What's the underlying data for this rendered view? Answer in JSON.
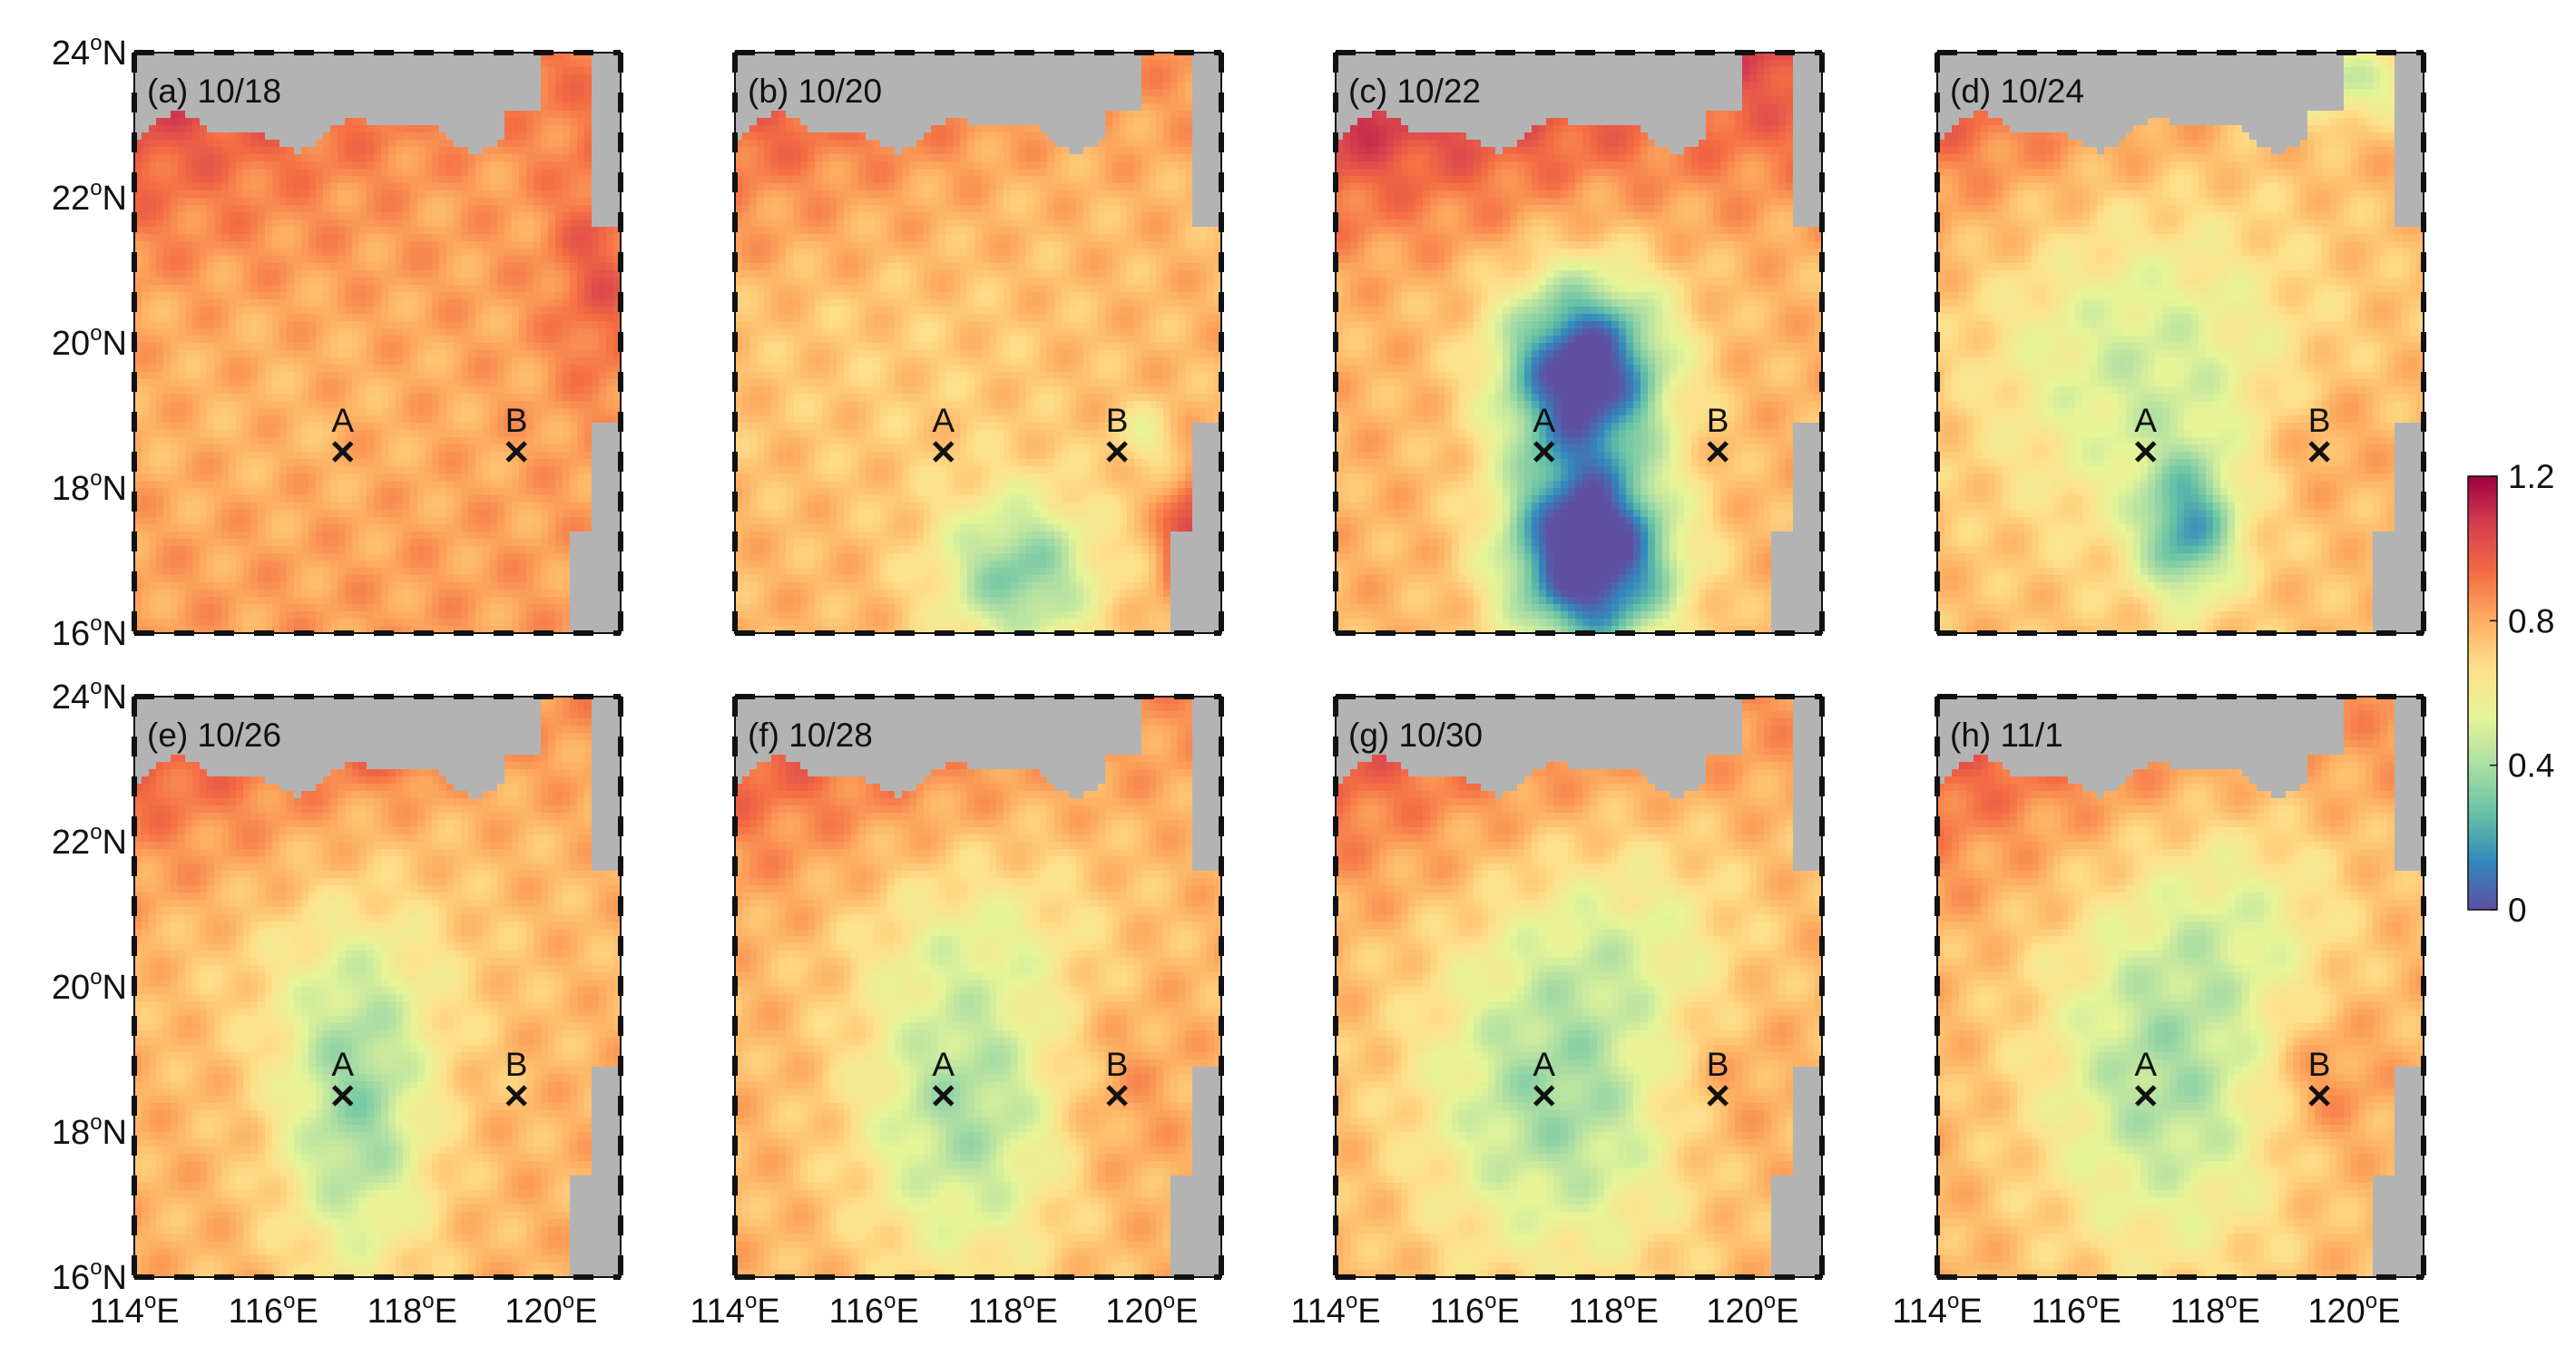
{
  "chart_data": {
    "type": "heatmap",
    "figure": "multi-panel map of a scalar field over the northern South China Sea",
    "panels": [
      {
        "label": "(a) 10/18",
        "row": 0,
        "col": 0
      },
      {
        "label": "(b) 10/20",
        "row": 0,
        "col": 1
      },
      {
        "label": "(c) 10/22",
        "row": 0,
        "col": 2
      },
      {
        "label": "(d) 10/24",
        "row": 0,
        "col": 3
      },
      {
        "label": "(e) 10/26",
        "row": 1,
        "col": 0
      },
      {
        "label": "(f) 10/28",
        "row": 1,
        "col": 1
      },
      {
        "label": "(g) 10/30",
        "row": 1,
        "col": 2
      },
      {
        "label": "(h) 11/1",
        "row": 1,
        "col": 3
      }
    ],
    "x_axis": {
      "range": [
        114,
        121
      ],
      "ticks": [
        {
          "value": 114,
          "label": "114",
          "suffix": "E"
        },
        {
          "value": 116,
          "label": "116",
          "suffix": "E"
        },
        {
          "value": 118,
          "label": "118",
          "suffix": "E"
        },
        {
          "value": 120,
          "label": "120",
          "suffix": "E"
        }
      ]
    },
    "y_axis": {
      "range": [
        16,
        24
      ],
      "ticks": [
        {
          "value": 24,
          "label": "24",
          "suffix": "N"
        },
        {
          "value": 22,
          "label": "22",
          "suffix": "N"
        },
        {
          "value": 20,
          "label": "20",
          "suffix": "N"
        },
        {
          "value": 18,
          "label": "18",
          "suffix": "N"
        },
        {
          "value": 16,
          "label": "16",
          "suffix": "N"
        }
      ]
    },
    "degree_mark": "o",
    "sites": [
      {
        "label": "A",
        "lon": 117.0,
        "lat": 18.5
      },
      {
        "label": "B",
        "lon": 119.5,
        "lat": 18.5
      }
    ],
    "colorbar": {
      "min": 0,
      "max": 1.2,
      "ticks": [
        {
          "value": 1.2,
          "label": "1.2"
        },
        {
          "value": 0.8,
          "label": "0.8"
        },
        {
          "value": 0.4,
          "label": "0.4"
        },
        {
          "value": 0,
          "label": "0"
        }
      ],
      "colormap": "spectral-reversed",
      "stops": [
        "#5e4fa2",
        "#3288bd",
        "#66c2a5",
        "#abdda4",
        "#e6f598",
        "#fee08b",
        "#fdae61",
        "#f46d43",
        "#d53e4f",
        "#9e0142"
      ]
    },
    "land_color": "#b3b3b3",
    "grid": false
  }
}
